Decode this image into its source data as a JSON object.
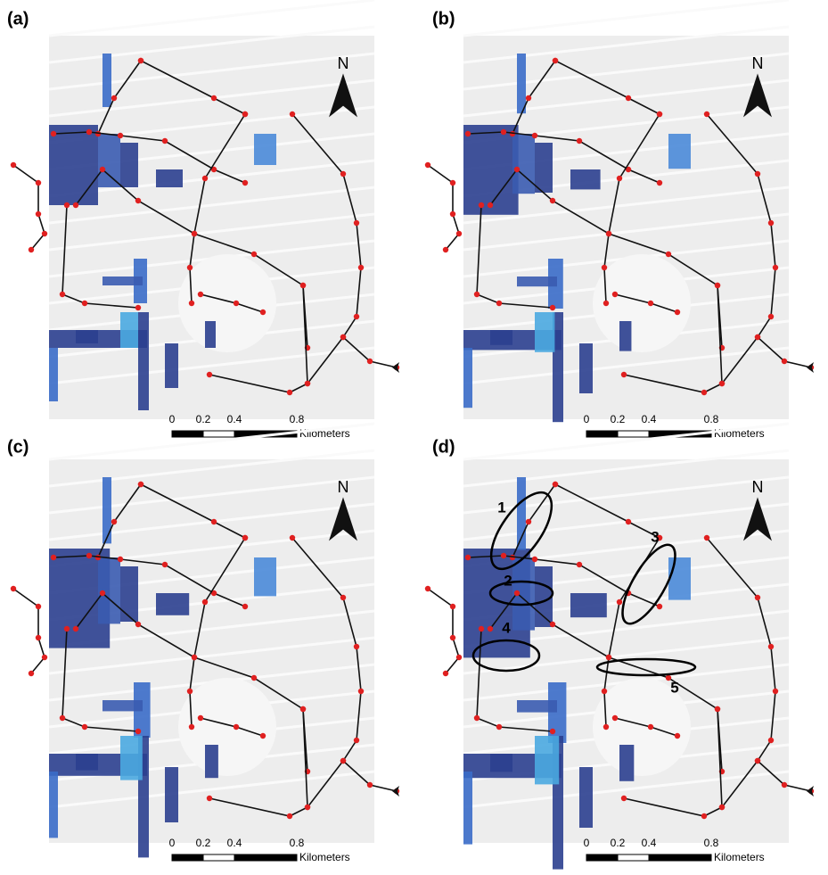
{
  "panels": [
    {
      "label": "(a)",
      "north": "N",
      "scale": {
        "ticks": [
          "0",
          "0.2",
          "0.4",
          "0.8"
        ],
        "unit": "Kilometers"
      }
    },
    {
      "label": "(b)",
      "north": "N",
      "scale": {
        "ticks": [
          "0",
          "0.2",
          "0.4",
          "0.8"
        ],
        "unit": "Kilometers"
      }
    },
    {
      "label": "(c)",
      "north": "N",
      "scale": {
        "ticks": [
          "0",
          "0.2",
          "0.4",
          "0.8"
        ],
        "unit": "Kilometers"
      }
    },
    {
      "label": "(d)",
      "north": "N",
      "scale": {
        "ticks": [
          "0",
          "0.2",
          "0.4",
          "0.8"
        ],
        "unit": "Kilometers"
      },
      "annotations": [
        "1",
        "2",
        "3",
        "4",
        "5"
      ]
    }
  ]
}
